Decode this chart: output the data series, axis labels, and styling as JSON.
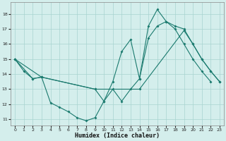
{
  "xlabel": "Humidex (Indice chaleur)",
  "background_color": "#d4eeec",
  "grid_color": "#a8d4d0",
  "line_color": "#1a7a6e",
  "xlim": [
    -0.5,
    23.5
  ],
  "ylim": [
    10.6,
    18.8
  ],
  "yticks": [
    11,
    12,
    13,
    14,
    15,
    16,
    17,
    18
  ],
  "xticks": [
    0,
    1,
    2,
    3,
    4,
    5,
    6,
    7,
    8,
    9,
    10,
    11,
    12,
    13,
    14,
    15,
    16,
    17,
    18,
    19,
    20,
    21,
    22,
    23
  ],
  "line1_x": [
    0,
    1,
    2,
    3,
    4,
    5,
    6,
    7,
    8,
    9,
    10,
    11,
    12,
    13,
    14,
    15,
    16,
    17,
    18,
    19,
    20,
    21,
    22
  ],
  "line1_y": [
    15.0,
    14.2,
    13.7,
    13.8,
    12.1,
    11.8,
    11.5,
    11.1,
    10.9,
    11.1,
    12.2,
    13.0,
    12.2,
    13.0,
    13.7,
    16.4,
    17.2,
    17.5,
    17.0,
    16.0,
    15.0,
    14.2,
    13.5
  ],
  "line2_x": [
    0,
    2,
    3,
    9,
    10,
    11,
    12,
    13,
    14,
    15,
    16,
    17,
    18,
    19,
    20,
    21,
    22,
    23
  ],
  "line2_y": [
    15.0,
    13.7,
    13.8,
    13.0,
    12.2,
    13.5,
    15.5,
    16.3,
    13.7,
    17.2,
    18.3,
    17.5,
    17.2,
    17.0,
    16.0,
    15.0,
    14.2,
    13.5
  ],
  "line3_x": [
    0,
    3,
    9,
    14,
    19,
    20,
    21,
    22,
    23
  ],
  "line3_y": [
    15.0,
    13.8,
    13.0,
    13.0,
    16.9,
    16.0,
    15.0,
    14.2,
    13.5
  ]
}
